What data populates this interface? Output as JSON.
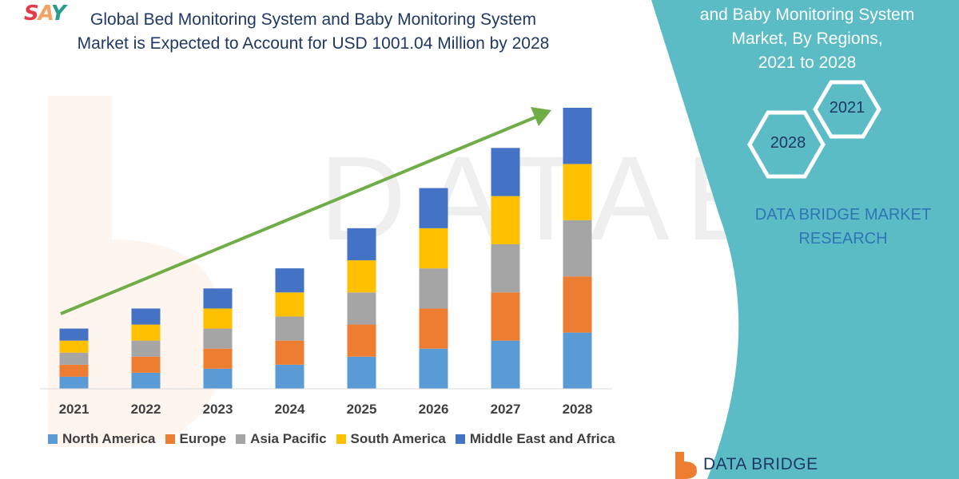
{
  "header": {
    "logo_text": "SAY",
    "title_line1": "Global Bed Monitoring System and Baby Monitoring System",
    "title_line2": "Market is Expected to Account for USD 1001.04 Million by 2028"
  },
  "side_panel": {
    "title_line1": "and Baby Monitoring System",
    "title_line2": "Market, By Regions,",
    "title_line3": "2021 to 2028",
    "hex_start": "2021",
    "hex_end": "2028",
    "brand_line1": "DATA BRIDGE MARKET",
    "brand_line2": "RESEARCH",
    "panel_color": "#5bbcc6"
  },
  "footer": {
    "logo_text": "DATA BRIDGE"
  },
  "colors": {
    "North America": "#5b9bd5",
    "Europe": "#ed7d31",
    "Asia Pacific": "#a5a5a5",
    "South America": "#ffc000",
    "Middle East and Africa": "#4472c4",
    "trend_arrow": "#70ad47"
  },
  "chart_data": {
    "type": "bar",
    "stacked": true,
    "title": "Global Bed Monitoring System and Baby Monitoring System Market is Expected to Account for USD 1001.04 Million by 2028",
    "categories": [
      "2021",
      "2022",
      "2023",
      "2024",
      "2025",
      "2026",
      "2027",
      "2028"
    ],
    "series": [
      {
        "name": "North America",
        "values": [
          3,
          4,
          5,
          6,
          8,
          10,
          12,
          14
        ]
      },
      {
        "name": "Europe",
        "values": [
          3,
          4,
          5,
          6,
          8,
          10,
          12,
          14
        ]
      },
      {
        "name": "Asia Pacific",
        "values": [
          3,
          4,
          5,
          6,
          8,
          10,
          12,
          14
        ]
      },
      {
        "name": "South America",
        "values": [
          3,
          4,
          5,
          6,
          8,
          10,
          12,
          14
        ]
      },
      {
        "name": "Middle East and Africa",
        "values": [
          3,
          4,
          5,
          6,
          8,
          10,
          12,
          14
        ]
      }
    ],
    "ylim": [
      0,
      70
    ],
    "grid": false,
    "legend_position": "bottom",
    "annotation": "upward trend arrow"
  }
}
